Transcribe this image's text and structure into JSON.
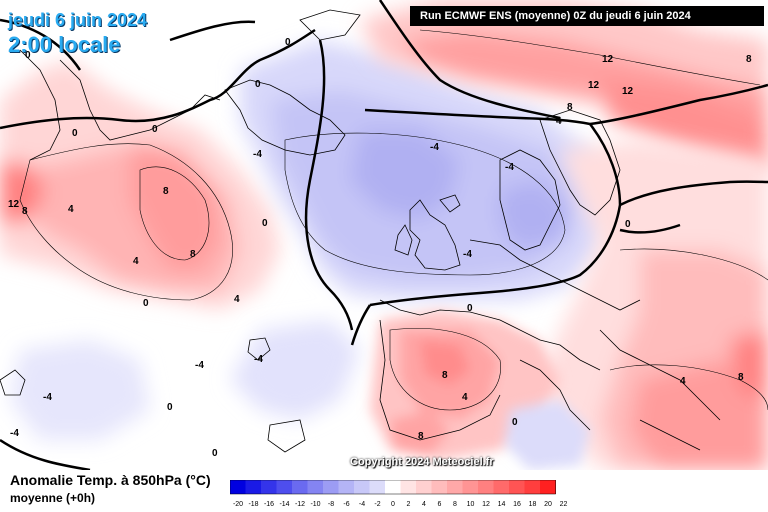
{
  "header": {
    "date_title": "jeudi 6 juin 2024",
    "time_title": "2:00 locale",
    "run_info": "Run ECMWF ENS (moyenne) 0Z du jeudi 6 juin 2024"
  },
  "footer": {
    "variable_title": "Anomalie Temp. à 850hPa (°C)",
    "variable_sub": "moyenne   (+0h)",
    "copyright": "Copyright 2024 Meteociel.fr"
  },
  "legend": {
    "ticks": [
      "-20",
      "-18",
      "-16",
      "-14",
      "-12",
      "-10",
      "-8",
      "-6",
      "-4",
      "-2",
      "0",
      "2",
      "4",
      "6",
      "8",
      "10",
      "12",
      "14",
      "16",
      "18",
      "20",
      "22"
    ],
    "colors": [
      "#0000e0",
      "#1a1ae6",
      "#3434ea",
      "#4e4eee",
      "#6a6af0",
      "#8484f2",
      "#9c9cf4",
      "#b4b4f6",
      "#c8c8f8",
      "#dcdcfa",
      "#ffffff",
      "#ffe4e4",
      "#ffd0d0",
      "#ffbcbc",
      "#ffa8a8",
      "#ff9494",
      "#ff8080",
      "#ff6a6a",
      "#ff5454",
      "#ff3e3e",
      "#ff2020"
    ]
  },
  "contour_labels": [
    {
      "text": "0"
    },
    {
      "text": "0"
    },
    {
      "text": "0"
    },
    {
      "text": "0"
    },
    {
      "text": "0"
    },
    {
      "text": "0"
    },
    {
      "text": "0"
    },
    {
      "text": "0"
    },
    {
      "text": "0"
    },
    {
      "text": "0"
    },
    {
      "text": "0"
    },
    {
      "text": "0"
    },
    {
      "text": "-4"
    },
    {
      "text": "-4"
    },
    {
      "text": "-4"
    },
    {
      "text": "-4"
    },
    {
      "text": "-4"
    },
    {
      "text": "-4"
    },
    {
      "text": "-4"
    },
    {
      "text": "-4"
    },
    {
      "text": "4"
    },
    {
      "text": "4"
    },
    {
      "text": "4"
    },
    {
      "text": "4"
    },
    {
      "text": "4"
    },
    {
      "text": "4"
    },
    {
      "text": "8"
    },
    {
      "text": "8"
    },
    {
      "text": "8"
    },
    {
      "text": "8"
    },
    {
      "text": "8"
    },
    {
      "text": "8"
    },
    {
      "text": "8"
    },
    {
      "text": "8"
    },
    {
      "text": "12"
    },
    {
      "text": "12"
    },
    {
      "text": "12"
    },
    {
      "text": "12"
    }
  ],
  "colors": {
    "title_blue": "#29aaf0",
    "warm_anomaly": "#ff8a8a",
    "cold_anomaly": "#b8b8f6"
  }
}
